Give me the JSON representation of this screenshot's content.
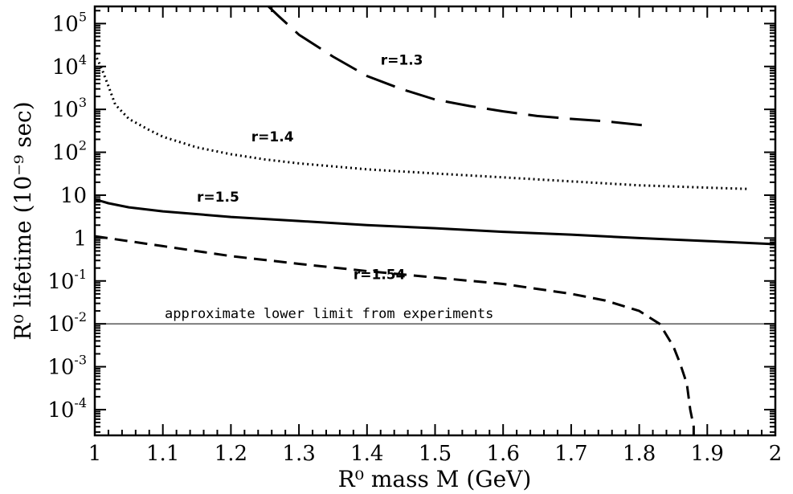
{
  "chart_data": {
    "type": "line",
    "title": "",
    "xlabel": "R⁰ mass M (GeV)",
    "ylabel": "R⁰ lifetime (10⁻⁹ sec)",
    "xlim": [
      1.0,
      2.0
    ],
    "ylim_log10": [
      -4.6,
      5.4
    ],
    "yscale": "log",
    "grid": false,
    "x_ticks": [
      "1",
      "1.1",
      "1.2",
      "1.3",
      "1.4",
      "1.5",
      "1.6",
      "1.7",
      "1.8",
      "1.9",
      "2"
    ],
    "y_ticks": [
      {
        "exp": 5,
        "base": "10",
        "sup": "5"
      },
      {
        "exp": 4,
        "base": "10",
        "sup": "4"
      },
      {
        "exp": 3,
        "base": "10",
        "sup": "3"
      },
      {
        "exp": 2,
        "base": "10",
        "sup": "2"
      },
      {
        "exp": 1,
        "base": "10",
        "sup": ""
      },
      {
        "exp": 0,
        "base": "1",
        "sup": ""
      },
      {
        "exp": -1,
        "base": "10",
        "sup": "-1"
      },
      {
        "exp": -2,
        "base": "10",
        "sup": "-2"
      },
      {
        "exp": -3,
        "base": "10",
        "sup": "-3"
      },
      {
        "exp": -4,
        "base": "10",
        "sup": "-4"
      }
    ],
    "series": [
      {
        "name": "r=1.3",
        "dash": "38,14",
        "x": [
          1.25,
          1.27,
          1.3,
          1.35,
          1.4,
          1.45,
          1.5,
          1.55,
          1.6,
          1.65,
          1.7,
          1.75,
          1.81
        ],
        "y": [
          300000,
          150000,
          55000,
          17000,
          6000,
          3000,
          1700,
          1200,
          900,
          700,
          600,
          530,
          420
        ]
      },
      {
        "name": "r=1.4",
        "dash": "2,4",
        "x": [
          1.0,
          1.01,
          1.02,
          1.03,
          1.05,
          1.08,
          1.1,
          1.15,
          1.2,
          1.25,
          1.3,
          1.4,
          1.5,
          1.6,
          1.7,
          1.8,
          1.9,
          1.96
        ],
        "y": [
          20000,
          9000,
          3500,
          1300,
          600,
          330,
          230,
          130,
          90,
          68,
          55,
          40,
          32,
          26,
          21,
          17,
          15,
          14
        ]
      },
      {
        "name": "r=1.5",
        "dash": "",
        "x": [
          1.0,
          1.02,
          1.05,
          1.1,
          1.2,
          1.3,
          1.4,
          1.5,
          1.6,
          1.7,
          1.8,
          1.9,
          2.0
        ],
        "y": [
          8,
          6.5,
          5.2,
          4.2,
          3.1,
          2.5,
          2.0,
          1.7,
          1.4,
          1.2,
          1.0,
          0.85,
          0.72
        ]
      },
      {
        "name": "r=1.54",
        "dash": "16,9",
        "x": [
          1.0,
          1.1,
          1.2,
          1.3,
          1.4,
          1.5,
          1.6,
          1.7,
          1.75,
          1.8,
          1.83,
          1.85,
          1.86,
          1.87,
          1.875,
          1.88,
          1.88
        ],
        "y": [
          1.1,
          0.65,
          0.38,
          0.25,
          0.17,
          0.12,
          0.085,
          0.05,
          0.035,
          0.02,
          0.01,
          0.003,
          0.0012,
          0.0004,
          0.0001,
          4e-05,
          2.5e-05
        ]
      }
    ],
    "reference_line": {
      "y": 0.01,
      "label": "approximate lower limit from experiments"
    },
    "curve_labels": [
      {
        "text": "r=1.3",
        "x": 1.42,
        "y": 11000
      },
      {
        "text": "r=1.4",
        "x": 1.23,
        "y": 180
      },
      {
        "text": "r=1.5",
        "x": 1.15,
        "y": 7
      },
      {
        "text": "r=1.54",
        "x": 1.38,
        "y": 0.11
      }
    ]
  }
}
